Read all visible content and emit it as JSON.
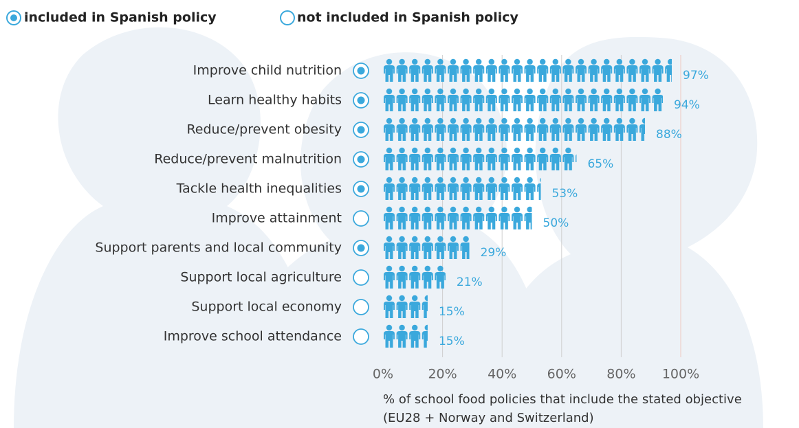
{
  "chart_data": {
    "type": "pictogram",
    "legend": [
      "included in Spanish policy",
      "not included in Spanish policy"
    ],
    "categories": [
      "Improve child nutrition",
      "Learn healthy habits",
      "Reduce/prevent obesity",
      "Reduce/prevent malnutrition",
      "Tackle health inequalities",
      "Improve attainment",
      "Support parents and local community",
      "Support local agriculture",
      "Support local economy",
      "Improve school attendance"
    ],
    "values": [
      97,
      94,
      88,
      65,
      53,
      50,
      29,
      21,
      15,
      15
    ],
    "value_labels": [
      "97%",
      "94%",
      "88%",
      "65%",
      "53%",
      "50%",
      "29%",
      "21%",
      "15%",
      "15%"
    ],
    "included": [
      true,
      true,
      true,
      true,
      true,
      false,
      true,
      false,
      false,
      false
    ],
    "color": "#3aa8dc",
    "xlim": [
      0,
      100
    ],
    "xticks": [
      {
        "value": 0,
        "label": "0%"
      },
      {
        "value": 20,
        "label": "20%"
      },
      {
        "value": 40,
        "label": "40%"
      },
      {
        "value": 60,
        "label": "60%"
      },
      {
        "value": 80,
        "label": "80%"
      },
      {
        "value": 100,
        "label": "100%"
      }
    ],
    "grid": true,
    "xlabel": "% of school food policies that include the stated objective",
    "xlabel_note": "(EU28 + Norway and Switzerland)"
  }
}
